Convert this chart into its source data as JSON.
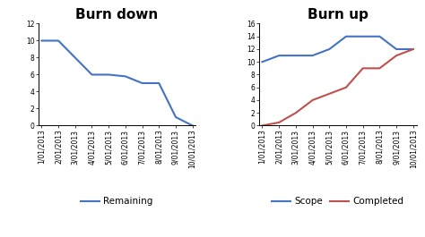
{
  "dates": [
    "1/01/2013",
    "2/01/2013",
    "3/01/2013",
    "4/01/2013",
    "5/01/2013",
    "6/01/2013",
    "7/01/2013",
    "8/01/2013",
    "9/01/2013",
    "10/01/2013"
  ],
  "burndown": {
    "title": "Burn down",
    "remaining": [
      10,
      10,
      8,
      6,
      6,
      5.8,
      5,
      5,
      1,
      0
    ],
    "ylim": [
      0,
      12
    ],
    "yticks": [
      0,
      2,
      4,
      6,
      8,
      10,
      12
    ],
    "line_color": "#4472C4",
    "legend_label": "Remaining"
  },
  "burnup": {
    "title": "Burn up",
    "scope": [
      10,
      11,
      11,
      11,
      12,
      14,
      14,
      14,
      12,
      12
    ],
    "completed": [
      0,
      0.5,
      2,
      4,
      5,
      6,
      9,
      9,
      11,
      12
    ],
    "ylim": [
      0,
      16
    ],
    "yticks": [
      0,
      2,
      4,
      6,
      8,
      10,
      12,
      14,
      16
    ],
    "scope_color": "#4472C4",
    "completed_color": "#C0504D",
    "scope_label": "Scope",
    "completed_label": "Completed"
  },
  "background_color": "#FFFFFF",
  "title_fontsize": 11,
  "tick_fontsize": 5.5,
  "legend_fontsize": 7.5
}
